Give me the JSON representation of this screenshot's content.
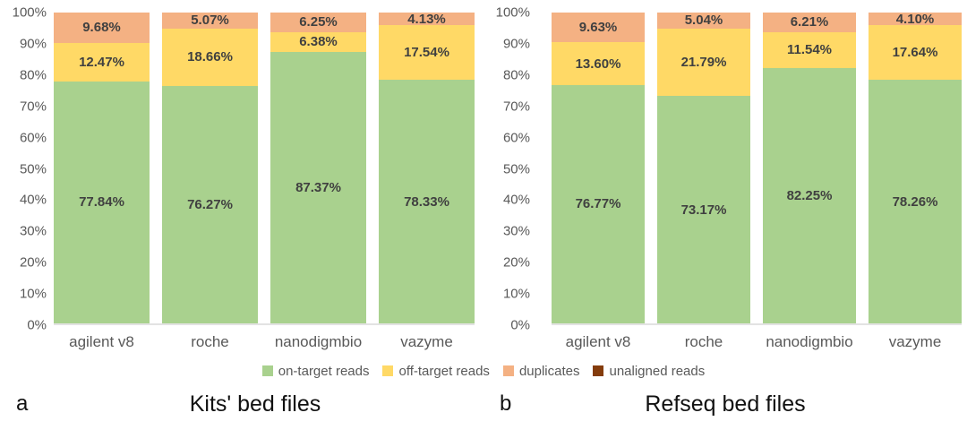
{
  "legend": {
    "entries": [
      {
        "label": "on-target reads",
        "color": "#a9d18e"
      },
      {
        "label": "off-target reads",
        "color": "#ffd966"
      },
      {
        "label": "duplicates",
        "color": "#f4b183"
      },
      {
        "label": "unaligned reads",
        "color": "#843c0c"
      }
    ]
  },
  "footer": {
    "panel_a_letter": "a",
    "panel_a_title": "Kits' bed files",
    "panel_b_letter": "b",
    "panel_b_title": "Refseq bed files"
  },
  "colors": {
    "on_target": "#a9d18e",
    "off_target": "#ffd966",
    "duplicates": "#f4b183",
    "unaligned": "#843c0c",
    "value_label": "#404040",
    "axis_text": "#595959",
    "axis_line": "#e3e3e3"
  },
  "chart_data": [
    {
      "type": "bar",
      "subtype": "stacked-percentage",
      "panel": "a",
      "title": "Kits' bed files",
      "categories": [
        "agilent v8",
        "roche",
        "nanodigmbio",
        "vazyme"
      ],
      "series": [
        {
          "name": "on-target reads",
          "color": "#a9d18e",
          "values": [
            77.84,
            76.27,
            87.37,
            78.33
          ],
          "labels": [
            "77.84%",
            "76.27%",
            "87.37%",
            "78.33%"
          ]
        },
        {
          "name": "off-target reads",
          "color": "#ffd966",
          "values": [
            12.47,
            18.66,
            6.38,
            17.54
          ],
          "labels": [
            "12.47%",
            "18.66%",
            "6.38%",
            "17.54%"
          ]
        },
        {
          "name": "duplicates",
          "color": "#f4b183",
          "values": [
            9.68,
            5.07,
            6.25,
            4.13
          ],
          "labels": [
            "9.68%",
            "5.07%",
            "6.25%",
            "4.13%"
          ]
        },
        {
          "name": "unaligned reads",
          "color": "#843c0c",
          "values": [
            0,
            0,
            0,
            0
          ],
          "labels": [
            "",
            "",
            "",
            ""
          ]
        }
      ],
      "ylim": [
        0,
        100
      ],
      "ylabel": "",
      "xlabel": "",
      "grid": false,
      "legend_position": "bottom",
      "yticks": [
        "0%",
        "10%",
        "20%",
        "30%",
        "40%",
        "50%",
        "60%",
        "70%",
        "80%",
        "90%",
        "100%"
      ]
    },
    {
      "type": "bar",
      "subtype": "stacked-percentage",
      "panel": "b",
      "title": "Refseq bed files",
      "categories": [
        "agilent v8",
        "roche",
        "nanodigmbio",
        "vazyme"
      ],
      "series": [
        {
          "name": "on-target reads",
          "color": "#a9d18e",
          "values": [
            76.77,
            73.17,
            82.25,
            78.26
          ],
          "labels": [
            "76.77%",
            "73.17%",
            "82.25%",
            "78.26%"
          ]
        },
        {
          "name": "off-target reads",
          "color": "#ffd966",
          "values": [
            13.6,
            21.79,
            11.54,
            17.64
          ],
          "labels": [
            "13.60%",
            "21.79%",
            "11.54%",
            "17.64%"
          ]
        },
        {
          "name": "duplicates",
          "color": "#f4b183",
          "values": [
            9.63,
            5.04,
            6.21,
            4.1
          ],
          "labels": [
            "9.63%",
            "5.04%",
            "6.21%",
            "4.10%"
          ]
        },
        {
          "name": "unaligned reads",
          "color": "#843c0c",
          "values": [
            0,
            0,
            0,
            0
          ],
          "labels": [
            "",
            "",
            "",
            ""
          ]
        }
      ],
      "ylim": [
        0,
        100
      ],
      "ylabel": "",
      "xlabel": "",
      "grid": false,
      "legend_position": "bottom",
      "yticks": [
        "0%",
        "10%",
        "20%",
        "30%",
        "40%",
        "50%",
        "60%",
        "70%",
        "80%",
        "90%",
        "100%"
      ]
    }
  ]
}
